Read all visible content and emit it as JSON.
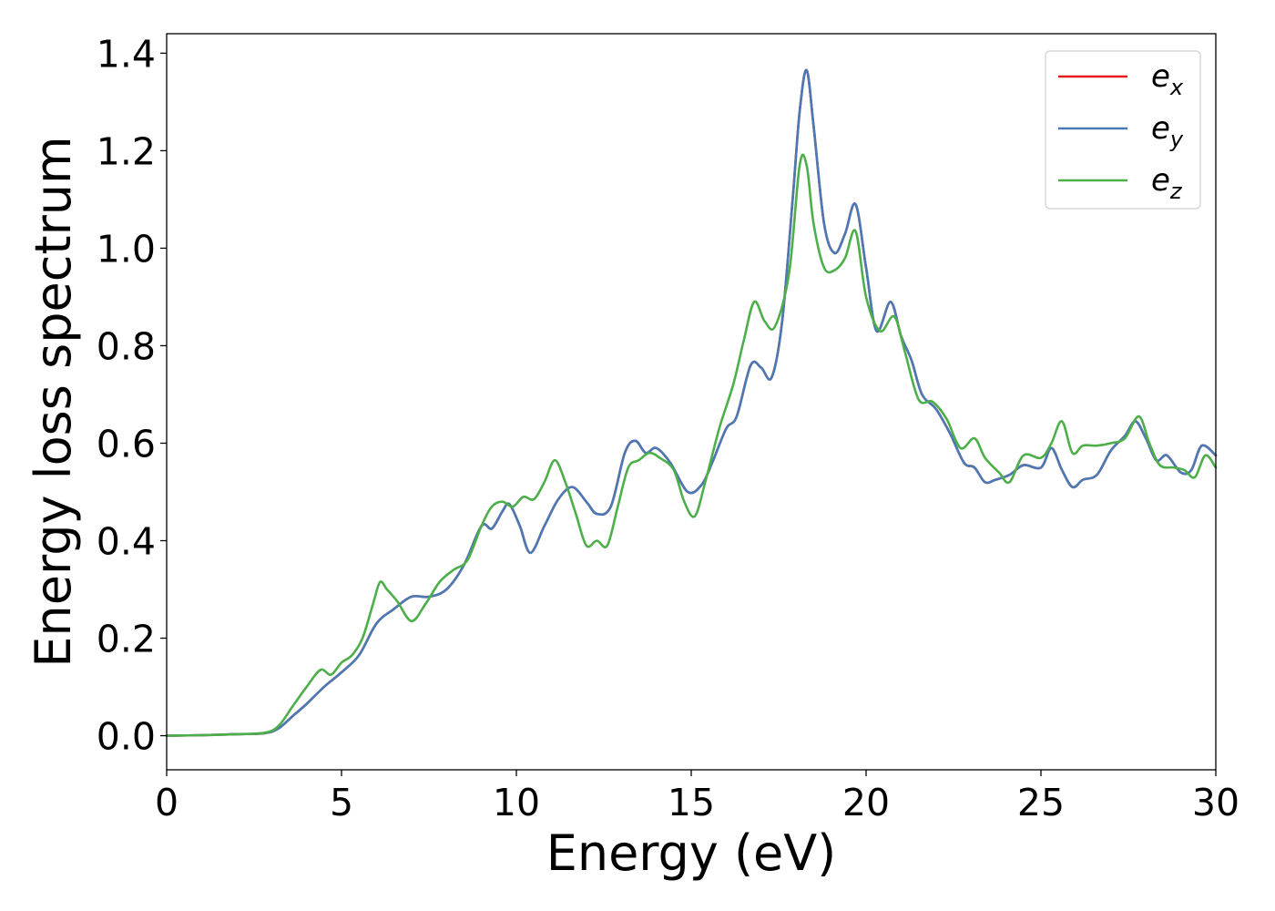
{
  "chart_data": {
    "type": "line",
    "xlabel": "Energy (eV)",
    "ylabel": "Energy loss spectrum",
    "xlim": [
      0,
      30
    ],
    "ylim": [
      -0.07,
      1.44
    ],
    "xticks": [
      0,
      5,
      10,
      15,
      20,
      25,
      30
    ],
    "xtick_labels": [
      "0",
      "5",
      "10",
      "15",
      "20",
      "25",
      "30"
    ],
    "yticks": [
      0.0,
      0.2,
      0.4,
      0.6,
      0.8,
      1.0,
      1.2,
      1.4
    ],
    "ytick_labels": [
      "0.0",
      "0.2",
      "0.4",
      "0.6",
      "0.8",
      "1.0",
      "1.2",
      "1.4"
    ],
    "grid": false,
    "legend_position": "top-right",
    "series": [
      {
        "name": "e_x",
        "legend_base": "e",
        "legend_sub": "x",
        "color": "#e41a1c",
        "x": [
          0,
          1,
          2,
          2.8,
          3.2,
          3.6,
          4,
          4.5,
          5,
          5.5,
          6,
          6.5,
          7,
          7.5,
          8,
          8.5,
          9,
          9.3,
          9.6,
          9.8,
          10.1,
          10.4,
          10.8,
          11.2,
          11.6,
          12,
          12.3,
          12.7,
          13.1,
          13.4,
          13.7,
          14,
          14.4,
          14.9,
          15.3,
          15.6,
          16,
          16.3,
          16.7,
          17,
          17.3,
          17.6,
          17.9,
          18.1,
          18.3,
          18.5,
          18.8,
          19.1,
          19.4,
          19.7,
          20,
          20.3,
          20.7,
          21,
          21.3,
          21.6,
          22,
          22.4,
          22.8,
          23.1,
          23.4,
          23.7,
          24.1,
          24.5,
          25,
          25.3,
          25.6,
          25.9,
          26.2,
          26.6,
          27,
          27.4,
          27.7,
          28,
          28.3,
          28.6,
          29,
          29.3,
          29.6,
          30
        ],
        "values": [
          0.0,
          0.001,
          0.003,
          0.005,
          0.015,
          0.04,
          0.065,
          0.1,
          0.13,
          0.165,
          0.23,
          0.26,
          0.285,
          0.285,
          0.3,
          0.35,
          0.43,
          0.425,
          0.46,
          0.475,
          0.43,
          0.375,
          0.43,
          0.485,
          0.51,
          0.48,
          0.455,
          0.47,
          0.58,
          0.605,
          0.58,
          0.59,
          0.56,
          0.5,
          0.515,
          0.56,
          0.63,
          0.655,
          0.76,
          0.755,
          0.735,
          0.85,
          1.1,
          1.28,
          1.365,
          1.25,
          1.05,
          0.99,
          1.03,
          1.09,
          0.96,
          0.83,
          0.89,
          0.82,
          0.77,
          0.7,
          0.67,
          0.62,
          0.56,
          0.55,
          0.52,
          0.525,
          0.535,
          0.555,
          0.55,
          0.59,
          0.545,
          0.51,
          0.525,
          0.535,
          0.585,
          0.615,
          0.645,
          0.61,
          0.565,
          0.575,
          0.54,
          0.545,
          0.595,
          0.575
        ]
      },
      {
        "name": "e_y",
        "legend_base": "e",
        "legend_sub": "y",
        "color": "#4a7ab5",
        "x": [
          0,
          1,
          2,
          2.8,
          3.2,
          3.6,
          4,
          4.5,
          5,
          5.5,
          6,
          6.5,
          7,
          7.5,
          8,
          8.5,
          9,
          9.3,
          9.6,
          9.8,
          10.1,
          10.4,
          10.8,
          11.2,
          11.6,
          12,
          12.3,
          12.7,
          13.1,
          13.4,
          13.7,
          14,
          14.4,
          14.9,
          15.3,
          15.6,
          16,
          16.3,
          16.7,
          17,
          17.3,
          17.6,
          17.9,
          18.1,
          18.3,
          18.5,
          18.8,
          19.1,
          19.4,
          19.7,
          20,
          20.3,
          20.7,
          21,
          21.3,
          21.6,
          22,
          22.4,
          22.8,
          23.1,
          23.4,
          23.7,
          24.1,
          24.5,
          25,
          25.3,
          25.6,
          25.9,
          26.2,
          26.6,
          27,
          27.4,
          27.7,
          28,
          28.3,
          28.6,
          29,
          29.3,
          29.6,
          30
        ],
        "values": [
          0.0,
          0.001,
          0.003,
          0.005,
          0.015,
          0.04,
          0.065,
          0.1,
          0.13,
          0.165,
          0.23,
          0.26,
          0.285,
          0.285,
          0.3,
          0.35,
          0.43,
          0.425,
          0.46,
          0.475,
          0.43,
          0.375,
          0.43,
          0.485,
          0.51,
          0.48,
          0.455,
          0.47,
          0.58,
          0.605,
          0.58,
          0.59,
          0.56,
          0.5,
          0.515,
          0.56,
          0.63,
          0.655,
          0.76,
          0.755,
          0.735,
          0.85,
          1.1,
          1.28,
          1.365,
          1.25,
          1.05,
          0.99,
          1.03,
          1.09,
          0.96,
          0.83,
          0.89,
          0.82,
          0.77,
          0.7,
          0.67,
          0.62,
          0.56,
          0.55,
          0.52,
          0.525,
          0.535,
          0.555,
          0.55,
          0.59,
          0.545,
          0.51,
          0.525,
          0.535,
          0.585,
          0.615,
          0.645,
          0.61,
          0.565,
          0.575,
          0.54,
          0.545,
          0.595,
          0.575
        ]
      },
      {
        "name": "e_z",
        "legend_base": "e",
        "legend_sub": "z",
        "color": "#4daf4a",
        "x": [
          0,
          1,
          2,
          2.8,
          3.2,
          3.6,
          4,
          4.4,
          4.7,
          5,
          5.3,
          5.6,
          5.9,
          6.1,
          6.3,
          6.6,
          7,
          7.4,
          7.8,
          8.2,
          8.6,
          9,
          9.3,
          9.6,
          9.9,
          10.2,
          10.5,
          10.8,
          11.1,
          11.4,
          11.7,
          12,
          12.3,
          12.6,
          12.9,
          13.2,
          13.5,
          13.8,
          14.1,
          14.5,
          14.8,
          15.1,
          15.4,
          15.8,
          16.2,
          16.5,
          16.8,
          17.1,
          17.4,
          17.8,
          18.1,
          18.3,
          18.5,
          18.8,
          19.1,
          19.4,
          19.7,
          20,
          20.4,
          20.8,
          21.1,
          21.5,
          21.9,
          22.3,
          22.7,
          23.1,
          23.4,
          23.8,
          24.1,
          24.5,
          25,
          25.3,
          25.6,
          25.9,
          26.2,
          26.6,
          27,
          27.4,
          27.8,
          28.1,
          28.4,
          28.8,
          29.1,
          29.4,
          29.7,
          30
        ],
        "values": [
          0.0,
          0.001,
          0.003,
          0.006,
          0.02,
          0.06,
          0.1,
          0.135,
          0.125,
          0.15,
          0.165,
          0.2,
          0.27,
          0.315,
          0.3,
          0.275,
          0.235,
          0.27,
          0.315,
          0.34,
          0.36,
          0.43,
          0.47,
          0.48,
          0.47,
          0.49,
          0.485,
          0.52,
          0.565,
          0.52,
          0.455,
          0.39,
          0.4,
          0.39,
          0.47,
          0.55,
          0.565,
          0.58,
          0.57,
          0.545,
          0.48,
          0.45,
          0.52,
          0.63,
          0.72,
          0.81,
          0.89,
          0.85,
          0.84,
          0.95,
          1.17,
          1.17,
          1.05,
          0.96,
          0.955,
          0.98,
          1.035,
          0.9,
          0.83,
          0.86,
          0.79,
          0.69,
          0.685,
          0.65,
          0.59,
          0.61,
          0.57,
          0.54,
          0.52,
          0.575,
          0.57,
          0.6,
          0.645,
          0.58,
          0.595,
          0.595,
          0.6,
          0.61,
          0.655,
          0.6,
          0.555,
          0.55,
          0.545,
          0.53,
          0.575,
          0.55
        ]
      }
    ]
  }
}
